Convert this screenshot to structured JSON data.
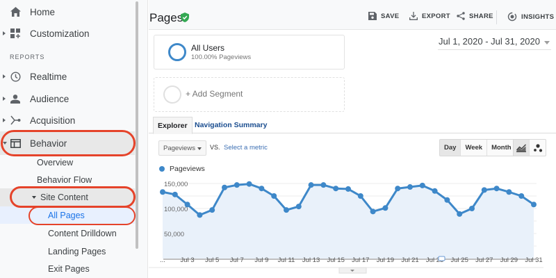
{
  "sidebar": {
    "items": [
      {
        "label": "Home",
        "icon": "home-icon"
      },
      {
        "label": "Customization",
        "icon": "dashboard-icon"
      },
      {
        "label": "Realtime",
        "icon": "clock-icon"
      },
      {
        "label": "Audience",
        "icon": "person-icon"
      },
      {
        "label": "Acquisition",
        "icon": "acquisition-icon"
      },
      {
        "label": "Behavior",
        "icon": "behavior-icon"
      }
    ],
    "section_label": "REPORTS",
    "behavior_sub": {
      "overview": "Overview",
      "behavior_flow": "Behavior Flow",
      "site_content": "Site Content",
      "all_pages": "All Pages",
      "content_drilldown": "Content Drilldown",
      "landing_pages": "Landing Pages",
      "exit_pages": "Exit Pages"
    }
  },
  "header": {
    "title": "Pages",
    "save": "SAVE",
    "export": "EXPORT",
    "share": "SHARE",
    "insights": "INSIGHTS"
  },
  "segments": {
    "active_name": "All Users",
    "active_sub": "100.00% Pageviews",
    "add_label": "+ Add Segment"
  },
  "date_range": "Jul 1, 2020 - Jul 31, 2020",
  "tabs": {
    "explorer": "Explorer",
    "navigation_summary": "Navigation Summary"
  },
  "controls": {
    "metric": "Pageviews",
    "vs": "VS.",
    "select_metric": "Select a metric",
    "day": "Day",
    "week": "Week",
    "month": "Month"
  },
  "colors": {
    "accent": "#3e88c9",
    "highlight_ring": "#e5432a",
    "link": "#1a4d8f"
  },
  "chart_data": {
    "type": "line",
    "title": "",
    "series": [
      {
        "name": "Pageviews",
        "values": [
          133000,
          128000,
          108000,
          87000,
          97000,
          142000,
          147000,
          149000,
          140000,
          125000,
          97000,
          104000,
          147000,
          147000,
          140000,
          139000,
          125000,
          94000,
          101000,
          140000,
          143000,
          146000,
          135000,
          117000,
          89000,
          100000,
          137000,
          140000,
          133000,
          125000,
          108000
        ]
      }
    ],
    "x": [
      "Jul 1",
      "Jul 2",
      "Jul 3",
      "Jul 4",
      "Jul 5",
      "Jul 6",
      "Jul 7",
      "Jul 8",
      "Jul 9",
      "Jul 10",
      "Jul 11",
      "Jul 12",
      "Jul 13",
      "Jul 14",
      "Jul 15",
      "Jul 16",
      "Jul 17",
      "Jul 18",
      "Jul 19",
      "Jul 20",
      "Jul 21",
      "Jul 22",
      "Jul 23",
      "Jul 24",
      "Jul 25",
      "Jul 26",
      "Jul 27",
      "Jul 28",
      "Jul 29",
      "Jul 30",
      "Jul 31"
    ],
    "x_tick_labels": [
      "...",
      "Jul 3",
      "Jul 5",
      "Jul 7",
      "Jul 9",
      "Jul 11",
      "Jul 13",
      "Jul 15",
      "Jul 17",
      "Jul 19",
      "Jul 21",
      "Jul 23",
      "Jul 25",
      "Jul 27",
      "Jul 29",
      "Jul 31"
    ],
    "y_tick_labels": [
      "150,000",
      "100,000",
      "50,000"
    ],
    "xlabel": "",
    "ylabel": "",
    "ylim": [
      0,
      150000
    ],
    "grid": true,
    "legend_position": "top-left"
  }
}
